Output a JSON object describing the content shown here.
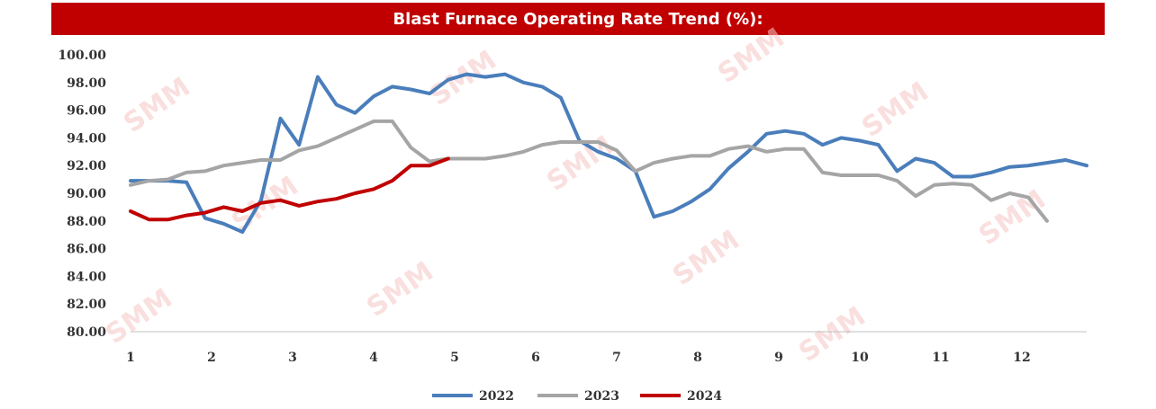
{
  "chart_data": {
    "type": "line",
    "title": "Blast Furnace Operating Rate Trend (%):",
    "xlabel": "",
    "ylabel": "",
    "ylim": [
      80,
      100
    ],
    "xlim": [
      1,
      12.8
    ],
    "y_ticks": [
      "100.00",
      "98.00",
      "96.00",
      "94.00",
      "92.00",
      "90.00",
      "88.00",
      "86.00",
      "84.00",
      "82.00",
      "80.00"
    ],
    "x_ticks": [
      "1",
      "2",
      "3",
      "4",
      "5",
      "6",
      "7",
      "8",
      "9",
      "10",
      "11",
      "12"
    ],
    "grid": false,
    "legend_position": "bottom",
    "watermark": "SMM",
    "series": [
      {
        "name": "2022",
        "color": "#4a7ebb",
        "x": [
          1.0,
          1.23,
          1.46,
          1.69,
          1.92,
          2.15,
          2.38,
          2.61,
          2.85,
          3.08,
          3.31,
          3.54,
          3.77,
          4.0,
          4.23,
          4.46,
          4.69,
          4.92,
          5.15,
          5.38,
          5.62,
          5.85,
          6.08,
          6.31,
          6.54,
          6.77,
          7.0,
          7.23,
          7.46,
          7.69,
          7.92,
          8.15,
          8.38,
          8.62,
          8.85,
          9.08,
          9.31,
          9.54,
          9.77,
          10.0,
          10.23,
          10.46,
          10.69,
          10.92,
          11.15,
          11.38,
          11.62,
          11.85,
          12.08,
          12.31,
          12.54,
          12.8
        ],
        "values": [
          90.9,
          90.9,
          90.9,
          90.8,
          88.2,
          87.8,
          87.2,
          89.5,
          95.4,
          93.5,
          98.4,
          96.4,
          95.8,
          97.0,
          97.7,
          97.5,
          97.2,
          98.2,
          98.6,
          98.4,
          98.6,
          98.0,
          97.7,
          96.9,
          93.8,
          93.0,
          92.5,
          91.6,
          88.3,
          88.7,
          89.4,
          90.3,
          91.8,
          93.0,
          94.3,
          94.5,
          94.3,
          93.5,
          94.0,
          93.8,
          93.5,
          91.6,
          92.5,
          92.2,
          91.2,
          91.2,
          91.5,
          91.9,
          92.0,
          92.2,
          92.4,
          92.0
        ]
      },
      {
        "name": "2023",
        "color": "#a5a5a5",
        "x": [
          1.0,
          1.23,
          1.46,
          1.69,
          1.92,
          2.15,
          2.38,
          2.61,
          2.85,
          3.08,
          3.31,
          3.54,
          3.77,
          4.0,
          4.23,
          4.46,
          4.69,
          4.92,
          5.15,
          5.38,
          5.62,
          5.85,
          6.08,
          6.31,
          6.54,
          6.77,
          7.0,
          7.23,
          7.46,
          7.69,
          7.92,
          8.15,
          8.38,
          8.62,
          8.85,
          9.08,
          9.31,
          9.54,
          9.77,
          10.0,
          10.23,
          10.46,
          10.69,
          10.92,
          11.15,
          11.38,
          11.62,
          11.85,
          12.08,
          12.31
        ],
        "values": [
          90.6,
          90.9,
          91.0,
          91.5,
          91.6,
          92.0,
          92.2,
          92.4,
          92.4,
          93.1,
          93.4,
          94.0,
          94.6,
          95.2,
          95.2,
          93.3,
          92.3,
          92.5,
          92.5,
          92.5,
          92.7,
          93.0,
          93.5,
          93.7,
          93.7,
          93.7,
          93.1,
          91.6,
          92.2,
          92.5,
          92.7,
          92.7,
          93.2,
          93.4,
          93.0,
          93.2,
          93.2,
          91.5,
          91.3,
          91.3,
          91.3,
          90.9,
          89.8,
          90.6,
          90.7,
          90.6,
          89.5,
          90.0,
          89.7,
          88.0
        ]
      },
      {
        "name": "2024",
        "color": "#c00000",
        "x": [
          1.0,
          1.23,
          1.46,
          1.69,
          1.92,
          2.15,
          2.38,
          2.61,
          2.85,
          3.08,
          3.31,
          3.54,
          3.77,
          4.0,
          4.23,
          4.46,
          4.69,
          4.92
        ],
        "values": [
          88.7,
          88.1,
          88.1,
          88.4,
          88.6,
          89.0,
          88.7,
          89.3,
          89.5,
          89.1,
          89.4,
          89.6,
          90.0,
          90.3,
          90.9,
          92.0,
          92.0,
          92.5
        ]
      }
    ]
  }
}
